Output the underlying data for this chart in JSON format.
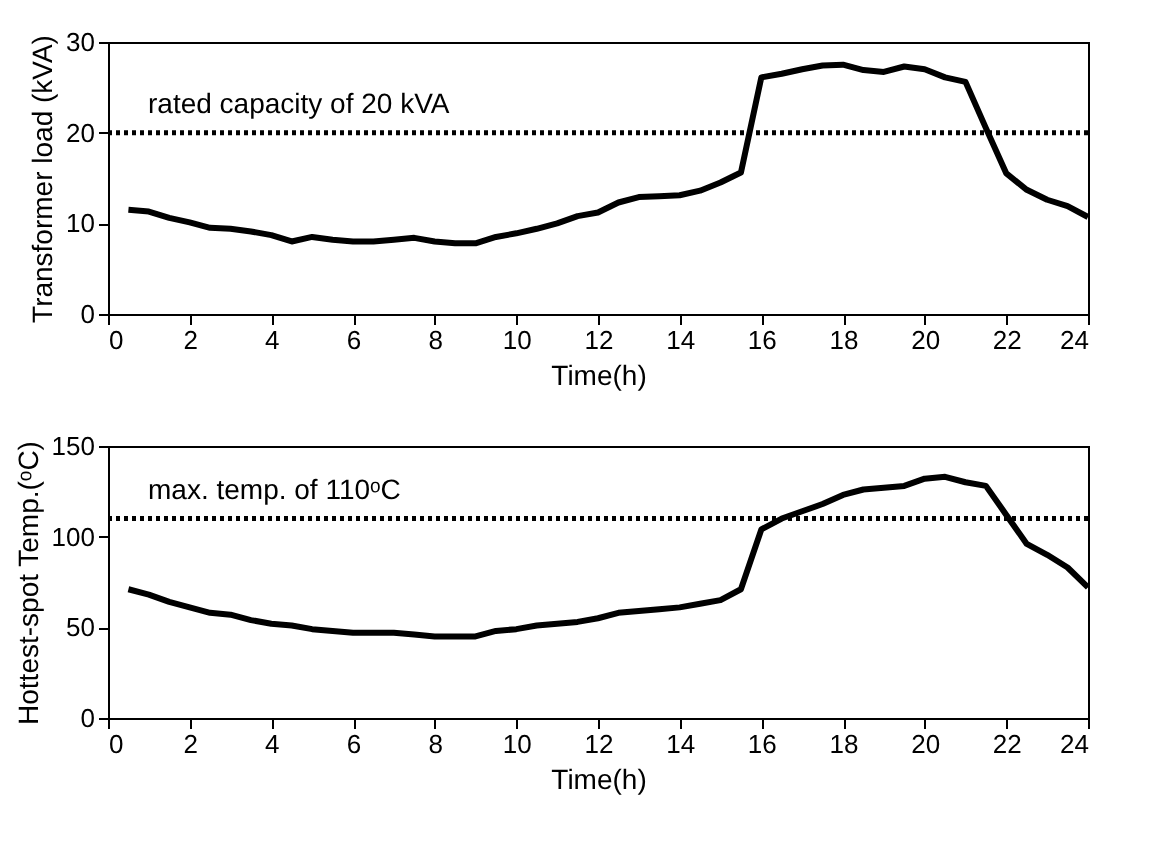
{
  "chart_data": [
    {
      "type": "line",
      "xlabel": "Time(h)",
      "ylabel": "Transformer load (kVA)",
      "xlim": [
        0,
        24
      ],
      "xticks": [
        0,
        2,
        4,
        6,
        8,
        10,
        12,
        14,
        16,
        18,
        20,
        22,
        24
      ],
      "ylim": [
        0,
        30
      ],
      "yticks": [
        0,
        10,
        20,
        30
      ],
      "grid": false,
      "x": [
        0.5,
        1,
        1.5,
        2,
        2.5,
        3,
        3.5,
        4,
        4.5,
        5,
        5.5,
        6,
        6.5,
        7,
        7.5,
        8,
        8.5,
        9,
        9.5,
        10,
        10.5,
        11,
        11.5,
        12,
        12.5,
        13,
        13.5,
        14,
        14.5,
        15,
        15.5,
        16,
        16.5,
        17,
        17.5,
        18,
        18.5,
        19,
        19.5,
        20,
        20.5,
        21,
        21.5,
        22,
        22.5,
        23,
        23.5,
        24
      ],
      "series": [
        {
          "color": "#000000",
          "values": [
            11.5,
            11.3,
            10.6,
            10.1,
            9.5,
            9.4,
            9.1,
            8.7,
            8.0,
            8.5,
            8.2,
            8.0,
            8.0,
            8.2,
            8.4,
            8.0,
            7.8,
            7.8,
            8.5,
            8.9,
            9.4,
            10.0,
            10.8,
            11.2,
            12.3,
            12.9,
            13.0,
            13.1,
            13.6,
            14.5,
            15.6,
            26.1,
            26.5,
            27.0,
            27.4,
            27.5,
            26.9,
            26.7,
            27.3,
            27.0,
            26.1,
            25.6,
            20.5,
            15.5,
            13.7,
            12.6,
            11.9,
            10.7
          ]
        }
      ],
      "ref_lines": [
        {
          "axis": "y",
          "value": 20,
          "label": "rated capacity of 20 kVA",
          "color": "#000000",
          "line_style": "dotted"
        }
      ]
    },
    {
      "type": "line",
      "xlabel": "Time(h)",
      "ylabel": "Hottest-spot Temp.(ᵒC)",
      "xlim": [
        0,
        24
      ],
      "xticks": [
        0,
        2,
        4,
        6,
        8,
        10,
        12,
        14,
        16,
        18,
        20,
        22,
        24
      ],
      "ylim": [
        0,
        150
      ],
      "yticks": [
        0,
        50,
        100,
        150
      ],
      "grid": false,
      "x": [
        0.5,
        1,
        1.5,
        2,
        2.5,
        3,
        3.5,
        4,
        4.5,
        5,
        5.5,
        6,
        6.5,
        7,
        7.5,
        8,
        8.5,
        9,
        9.5,
        10,
        10.5,
        11,
        11.5,
        12,
        12.5,
        13,
        13.5,
        14,
        14.5,
        15,
        15.5,
        16,
        16.5,
        17,
        17.5,
        18,
        18.5,
        19,
        19.5,
        20,
        20.5,
        21,
        21.5,
        22,
        22.5,
        23,
        23.5,
        24
      ],
      "series": [
        {
          "color": "#000000",
          "values": [
            71,
            68,
            64,
            61,
            58,
            57,
            54,
            52,
            51,
            49,
            48,
            47,
            47,
            47,
            46,
            45,
            45,
            45,
            48,
            49,
            51,
            52,
            53,
            55,
            58,
            59,
            60,
            61,
            63,
            65,
            71,
            104,
            110,
            114,
            118,
            123,
            126,
            127,
            128,
            132,
            133,
            130,
            128,
            112,
            96,
            90,
            83,
            72
          ]
        }
      ],
      "ref_lines": [
        {
          "axis": "y",
          "value": 110,
          "label": "max. temp. of 110ᵒC",
          "color": "#000000",
          "line_style": "dotted"
        }
      ]
    }
  ]
}
